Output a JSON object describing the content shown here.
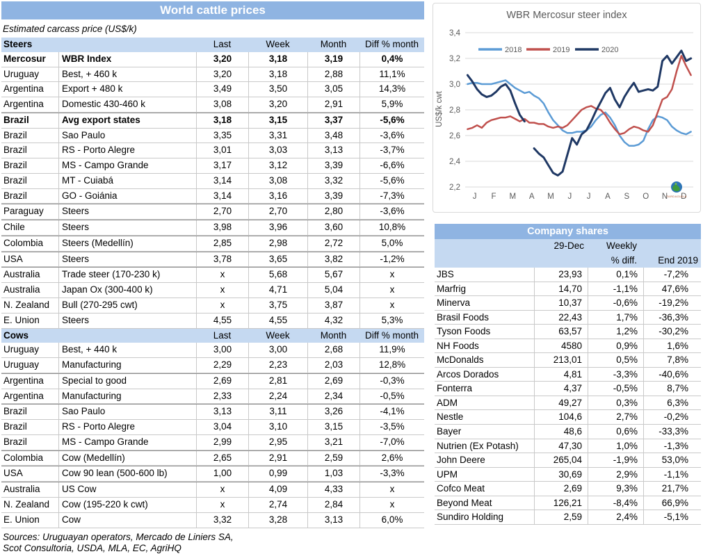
{
  "left_table": {
    "title": "World cattle prices",
    "subtitle": "Estimated carcass price (US$/k)",
    "columns": [
      "Last",
      "Week",
      "Month",
      "Diff % month"
    ],
    "sections": [
      {
        "name": "Steers",
        "rows": [
          {
            "country": "Mercosur",
            "desc": "WBR Index",
            "last": "3,20",
            "week": "3,18",
            "month": "3,19",
            "diff": "0,4%",
            "bold": true,
            "group": false
          },
          {
            "country": "Uruguay",
            "desc": "Best, + 460 k",
            "last": "3,20",
            "week": "3,18",
            "month": "2,88",
            "diff": "11,1%",
            "bold": false,
            "group": false
          },
          {
            "country": "Argentina",
            "desc": "Export + 480 k",
            "last": "3,49",
            "week": "3,50",
            "month": "3,05",
            "diff": "14,3%",
            "bold": false,
            "group": false
          },
          {
            "country": "Argentina",
            "desc": "Domestic 430-460 k",
            "last": "3,08",
            "week": "3,20",
            "month": "2,91",
            "diff": "5,9%",
            "bold": false,
            "group": false
          },
          {
            "country": "Brazil",
            "desc": "Avg export states",
            "last": "3,18",
            "week": "3,15",
            "month": "3,37",
            "diff": "-5,6%",
            "bold": true,
            "group": true
          },
          {
            "country": "Brazil",
            "desc": "Sao Paulo",
            "last": "3,35",
            "week": "3,31",
            "month": "3,48",
            "diff": "-3,6%",
            "bold": false,
            "group": false
          },
          {
            "country": "Brazil",
            "desc": "RS - Porto Alegre",
            "last": "3,01",
            "week": "3,03",
            "month": "3,13",
            "diff": "-3,7%",
            "bold": false,
            "group": false
          },
          {
            "country": "Brazil",
            "desc": "MS - Campo Grande",
            "last": "3,17",
            "week": "3,12",
            "month": "3,39",
            "diff": "-6,6%",
            "bold": false,
            "group": false
          },
          {
            "country": "Brazil",
            "desc": "MT - Cuiabá",
            "last": "3,14",
            "week": "3,08",
            "month": "3,32",
            "diff": "-5,6%",
            "bold": false,
            "group": false
          },
          {
            "country": "Brazil",
            "desc": "GO - Goiánia",
            "last": "3,14",
            "week": "3,16",
            "month": "3,39",
            "diff": "-7,3%",
            "bold": false,
            "group": false
          },
          {
            "country": "Paraguay",
            "desc": "Steers",
            "last": "2,70",
            "week": "2,70",
            "month": "2,80",
            "diff": "-3,6%",
            "bold": false,
            "group": true
          },
          {
            "country": "Chile",
            "desc": "Steers",
            "last": "3,98",
            "week": "3,96",
            "month": "3,60",
            "diff": "10,8%",
            "bold": false,
            "group": true
          },
          {
            "country": "Colombia",
            "desc": "Steers (Medellín)",
            "last": "2,85",
            "week": "2,98",
            "month": "2,72",
            "diff": "5,0%",
            "bold": false,
            "group": true
          },
          {
            "country": "USA",
            "desc": "Steers",
            "last": "3,78",
            "week": "3,65",
            "month": "3,82",
            "diff": "-1,2%",
            "bold": false,
            "group": true
          },
          {
            "country": "Australia",
            "desc": "Trade steer (170-230 k)",
            "last": "x",
            "week": "5,68",
            "month": "5,67",
            "diff": "x",
            "bold": false,
            "group": true
          },
          {
            "country": "Australia",
            "desc": "Japan Ox (300-400 k)",
            "last": "x",
            "week": "4,71",
            "month": "5,04",
            "diff": "x",
            "bold": false,
            "group": false
          },
          {
            "country": "N. Zealand",
            "desc": "Bull (270-295 cwt)",
            "last": "x",
            "week": "3,75",
            "month": "3,87",
            "diff": "x",
            "bold": false,
            "group": false
          },
          {
            "country": "E. Union",
            "desc": "Steers",
            "last": "4,55",
            "week": "4,55",
            "month": "4,32",
            "diff": "5,3%",
            "bold": false,
            "group": false
          }
        ]
      },
      {
        "name": "Cows",
        "rows": [
          {
            "country": "Uruguay",
            "desc": "Best, + 440 k",
            "last": "3,00",
            "week": "3,00",
            "month": "2,68",
            "diff": "11,9%",
            "bold": false,
            "group": false
          },
          {
            "country": "Uruguay",
            "desc": "Manufacturing",
            "last": "2,29",
            "week": "2,23",
            "month": "2,03",
            "diff": "12,8%",
            "bold": false,
            "group": false
          },
          {
            "country": "Argentina",
            "desc": "Special to good",
            "last": "2,69",
            "week": "2,81",
            "month": "2,69",
            "diff": "-0,3%",
            "bold": false,
            "group": true
          },
          {
            "country": "Argentina",
            "desc": "Manufacturing",
            "last": "2,33",
            "week": "2,24",
            "month": "2,34",
            "diff": "-0,5%",
            "bold": false,
            "group": false
          },
          {
            "country": "Brazil",
            "desc": "Sao Paulo",
            "last": "3,13",
            "week": "3,11",
            "month": "3,26",
            "diff": "-4,1%",
            "bold": false,
            "group": true
          },
          {
            "country": "Brazil",
            "desc": "RS - Porto Alegre",
            "last": "3,04",
            "week": "3,10",
            "month": "3,15",
            "diff": "-3,5%",
            "bold": false,
            "group": false
          },
          {
            "country": "Brazil",
            "desc": "MS - Campo Grande",
            "last": "2,99",
            "week": "2,95",
            "month": "3,21",
            "diff": "-7,0%",
            "bold": false,
            "group": false
          },
          {
            "country": "Colombia",
            "desc": "Cow (Medellín)",
            "last": "2,65",
            "week": "2,91",
            "month": "2,59",
            "diff": "2,6%",
            "bold": false,
            "group": true
          },
          {
            "country": "USA",
            "desc": "Cow 90 lean (500-600 lb)",
            "last": "1,00",
            "week": "0,99",
            "month": "1,03",
            "diff": "-3,3%",
            "bold": false,
            "group": true
          },
          {
            "country": "Australia",
            "desc": "US Cow",
            "last": "x",
            "week": "4,09",
            "month": "4,33",
            "diff": "x",
            "bold": false,
            "group": true
          },
          {
            "country": "N. Zealand",
            "desc": "Cow (195-220 k cwt)",
            "last": "x",
            "week": "2,74",
            "month": "2,84",
            "diff": "x",
            "bold": false,
            "group": false
          },
          {
            "country": "E. Union",
            "desc": "Cow",
            "last": "3,32",
            "week": "3,28",
            "month": "3,13",
            "diff": "6,0%",
            "bold": false,
            "group": false
          }
        ]
      }
    ],
    "footer_lines": [
      "Sources: Uruguayan operators, Mercado de Liniers SA,",
      "Scot Consultoria, USDA, MLA, EC, AgriHQ"
    ]
  },
  "chart_data": {
    "type": "line",
    "title": "WBR Mercosur steer index",
    "ylabel": "US$/k cwt",
    "ylim": [
      2.2,
      3.4
    ],
    "ytick_labels": [
      "2,2",
      "2,4",
      "2,6",
      "2,8",
      "3,0",
      "3,2",
      "3,4"
    ],
    "ytick_values": [
      2.2,
      2.4,
      2.6,
      2.8,
      3.0,
      3.2,
      3.4
    ],
    "x_labels": [
      "J",
      "F",
      "M",
      "A",
      "M",
      "J",
      "J",
      "A",
      "S",
      "O",
      "N",
      "D"
    ],
    "points_per_month": 4,
    "grid": true,
    "legend_position": "top",
    "grid_color": "#D9D9D9",
    "axis_text_color": "#595959",
    "logo_text": "TARDAGUILA",
    "series": [
      {
        "name": "2018",
        "color": "#5B9BD5",
        "width": 2.5,
        "values": [
          3.0,
          3.01,
          3.01,
          3.0,
          3.0,
          3.0,
          3.01,
          3.02,
          3.03,
          3.0,
          2.97,
          2.95,
          2.93,
          2.94,
          2.91,
          2.89,
          2.85,
          2.78,
          2.72,
          2.68,
          2.64,
          2.62,
          2.62,
          2.63,
          2.63,
          2.64,
          2.67,
          2.72,
          2.76,
          2.78,
          2.74,
          2.68,
          2.6,
          2.55,
          2.52,
          2.52,
          2.53,
          2.56,
          2.65,
          2.72,
          2.75,
          2.74,
          2.72,
          2.67,
          2.64,
          2.62,
          2.61,
          2.63
        ]
      },
      {
        "name": "2019",
        "color": "#C0504D",
        "width": 2.5,
        "values": [
          2.65,
          2.66,
          2.68,
          2.66,
          2.7,
          2.72,
          2.73,
          2.74,
          2.74,
          2.75,
          2.73,
          2.71,
          2.73,
          2.7,
          2.7,
          2.69,
          2.69,
          2.67,
          2.66,
          2.67,
          2.66,
          2.68,
          2.72,
          2.76,
          2.8,
          2.82,
          2.83,
          2.81,
          2.8,
          2.76,
          2.7,
          2.65,
          2.61,
          2.62,
          2.65,
          2.67,
          2.66,
          2.64,
          2.63,
          2.68,
          2.78,
          2.88,
          2.9,
          2.96,
          3.1,
          3.22,
          3.14,
          3.07
        ]
      },
      {
        "name": "2020",
        "color": "#1F3864",
        "width": 3,
        "values": [
          3.07,
          3.02,
          2.96,
          2.92,
          2.9,
          2.91,
          2.94,
          2.98,
          3.0,
          2.95,
          2.85,
          2.76,
          2.71,
          null,
          2.5,
          2.46,
          2.43,
          2.37,
          2.31,
          2.29,
          2.32,
          2.45,
          2.58,
          2.53,
          2.61,
          2.64,
          2.71,
          2.79,
          2.86,
          2.93,
          2.97,
          2.88,
          2.82,
          2.9,
          2.96,
          3.01,
          2.94,
          2.95,
          2.96,
          2.95,
          2.98,
          3.18,
          3.22,
          3.16,
          3.21,
          3.26,
          3.18,
          3.2
        ]
      }
    ]
  },
  "company_table": {
    "title": "Company shares",
    "header": {
      "date_col": "29-Dec",
      "weekly_line1": "Weekly",
      "weekly_line2": "% diff.",
      "end_col": "End 2019"
    },
    "rows": [
      {
        "name": "JBS",
        "price": "23,93",
        "weekly": "0,1%",
        "end2019": "-7,2%"
      },
      {
        "name": "Marfrig",
        "price": "14,70",
        "weekly": "-1,1%",
        "end2019": "47,6%"
      },
      {
        "name": "Minerva",
        "price": "10,37",
        "weekly": "-0,6%",
        "end2019": "-19,2%"
      },
      {
        "name": "Brasil Foods",
        "price": "22,43",
        "weekly": "1,7%",
        "end2019": "-36,3%"
      },
      {
        "name": "Tyson Foods",
        "price": "63,57",
        "weekly": "1,2%",
        "end2019": "-30,2%"
      },
      {
        "name": "NH Foods",
        "price": "4580",
        "weekly": "0,9%",
        "end2019": "1,6%"
      },
      {
        "name": "McDonalds",
        "price": "213,01",
        "weekly": "0,5%",
        "end2019": "7,8%"
      },
      {
        "name": "Arcos Dorados",
        "price": "4,81",
        "weekly": "-3,3%",
        "end2019": "-40,6%"
      },
      {
        "name": "Fonterra",
        "price": "4,37",
        "weekly": "-0,5%",
        "end2019": "8,7%"
      },
      {
        "name": "ADM",
        "price": "49,27",
        "weekly": "0,3%",
        "end2019": "6,3%"
      },
      {
        "name": "Nestle",
        "price": "104,6",
        "weekly": "2,7%",
        "end2019": "-0,2%"
      },
      {
        "name": "Bayer",
        "price": "48,6",
        "weekly": "0,6%",
        "end2019": "-33,3%"
      },
      {
        "name": "Nutrien (Ex Potash)",
        "price": "47,30",
        "weekly": "1,0%",
        "end2019": "-1,3%"
      },
      {
        "name": "John Deere",
        "price": "265,04",
        "weekly": "-1,9%",
        "end2019": "53,0%"
      },
      {
        "name": "UPM",
        "price": "30,69",
        "weekly": "2,9%",
        "end2019": "-1,1%"
      },
      {
        "name": "Cofco Meat",
        "price": "2,69",
        "weekly": "9,3%",
        "end2019": "21,7%"
      },
      {
        "name": "Beyond Meat",
        "price": "126,21",
        "weekly": "-8,4%",
        "end2019": "66,9%"
      },
      {
        "name": "Sundiro Holding",
        "price": "2,59",
        "weekly": "2,4%",
        "end2019": "-5,1%"
      }
    ]
  },
  "colors": {
    "title_bar": "#8FB4E2",
    "header_band": "#C5D9F1",
    "row_line": "#C9C9C9",
    "series_2018": "#5B9BD5",
    "series_2019": "#C0504D",
    "series_2020": "#1F3864"
  }
}
